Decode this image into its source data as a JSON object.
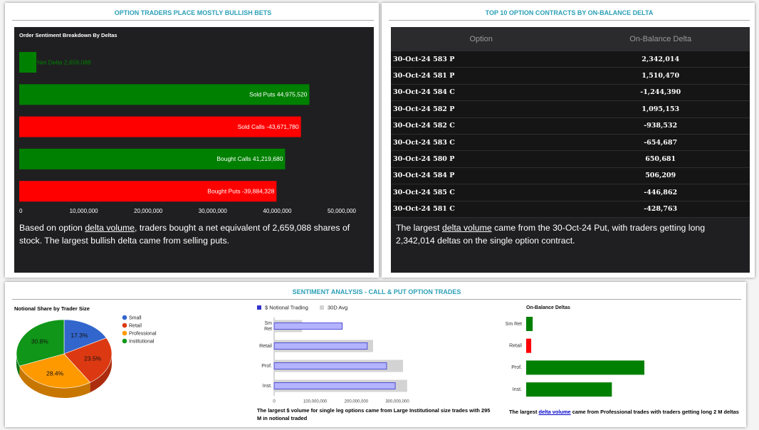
{
  "top_left": {
    "heading": "OPTION TRADERS PLACE MOSTLY BULLISH BETS",
    "note": {
      "before": "Based on option ",
      "link": "delta volume",
      "after": ", traders bought a net equivalent of 2,659,088 shares of stock. The largest bullish delta came from selling puts."
    }
  },
  "top_right": {
    "heading": "TOP 10 OPTION CONTRACTS BY ON-BALANCE DELTA",
    "table": {
      "columns": [
        "Option",
        "On-Balance Delta"
      ],
      "rows": [
        [
          "30-Oct-24 583 P",
          "2,342,014"
        ],
        [
          "30-Oct-24 581 P",
          "1,510,470"
        ],
        [
          "30-Oct-24 584 C",
          "-1,244,390"
        ],
        [
          "30-Oct-24 582 P",
          "1,095,153"
        ],
        [
          "30-Oct-24 582 C",
          "-938,532"
        ],
        [
          "30-Oct-24 583 C",
          "-654,687"
        ],
        [
          "30-Oct-24 580 P",
          "650,681"
        ],
        [
          "30-Oct-24 584 P",
          "506,209"
        ],
        [
          "30-Oct-24 585 C",
          "-446,862"
        ],
        [
          "30-Oct-24 581 C",
          "-428,763"
        ]
      ]
    },
    "note": {
      "before": "The largest ",
      "link": "delta volume",
      "after": " came from the 30-Oct-24 Put, with traders getting long 2,342,014 deltas on the single option contract."
    }
  },
  "bottom": {
    "heading": "SENTIMENT ANALYSIS - CALL & PUT OPTION TRADES",
    "note_left": "The largest $ volume for single leg options came from Large Institutional size trades with 295 M in notional traded",
    "note_right": {
      "before": "The largest ",
      "link": "delta volume",
      "after": " came from Professional trades with traders getting long 2 M deltas"
    }
  },
  "chart_data": [
    {
      "type": "delta-bar",
      "title": "Order Sentiment Breakdown By Deltas",
      "values": [
        2659088,
        44975520,
        -43671780,
        41219680,
        -39884328
      ],
      "value_labels": [
        "Net Delta 2,659,088",
        "Sold Puts 44,975,520",
        "Sold Calls -43,671,780",
        "Bought Calls 41,219,680",
        "Bought Puts -39,884,328"
      ],
      "colors": [
        "#008000",
        "#008000",
        "#ff0000",
        "#008000",
        "#ff0000"
      ],
      "xlim": [
        0,
        50000000
      ],
      "xticks": [
        0,
        {
          "value": 10000000,
          "label": "10,000,000"
        },
        {
          "value": 20000000,
          "label": "20,000,000"
        },
        {
          "value": 30000000,
          "label": "30,000,000"
        },
        {
          "value": 40000000,
          "label": "40,000,000"
        },
        {
          "value": 50000000,
          "label": "50,000,000"
        }
      ]
    },
    {
      "type": "pie",
      "title": "Notional Share by Trader Size",
      "categories": [
        "Small",
        "Retail",
        "Professional",
        "Institutional"
      ],
      "values": [
        17.3,
        23.5,
        28.4,
        30.8
      ],
      "value_labels": [
        "17.3%",
        "23.5%",
        "28.4%",
        "30.8%"
      ],
      "colors": [
        "#3366cc",
        "#dc3912",
        "#ff9900",
        "#109618"
      ],
      "legend": "right"
    },
    {
      "type": "grouped-bar",
      "categories": [
        "Sm Ret",
        "Retail",
        "Prof.",
        "Inst."
      ],
      "series": [
        {
          "name": "$ Notional Trading",
          "color": "#b3b3ff",
          "values": [
            166000000,
            227000000,
            274000000,
            295000000
          ]
        },
        {
          "name": "30D Avg",
          "color": "#d3d3d3",
          "values": [
            68000000,
            241000000,
            314000000,
            324000000
          ]
        }
      ],
      "xlim": [
        0,
        350000000
      ],
      "xticks": [
        0,
        {
          "value": 100000000,
          "label": "100,000,000"
        },
        {
          "value": 200000000,
          "label": "200,000,000"
        },
        {
          "value": 300000000,
          "label": "300,000,000"
        }
      ],
      "legend": "top"
    },
    {
      "type": "simple-bar",
      "title": "On-Balance Deltas",
      "categories": [
        "Sm Ret",
        "Retail",
        "Prof.",
        "Inst."
      ],
      "values": [
        110000,
        -85000,
        2000000,
        1450000
      ],
      "colors": [
        "#008000",
        "#ff0000",
        "#008000",
        "#008000"
      ]
    }
  ]
}
